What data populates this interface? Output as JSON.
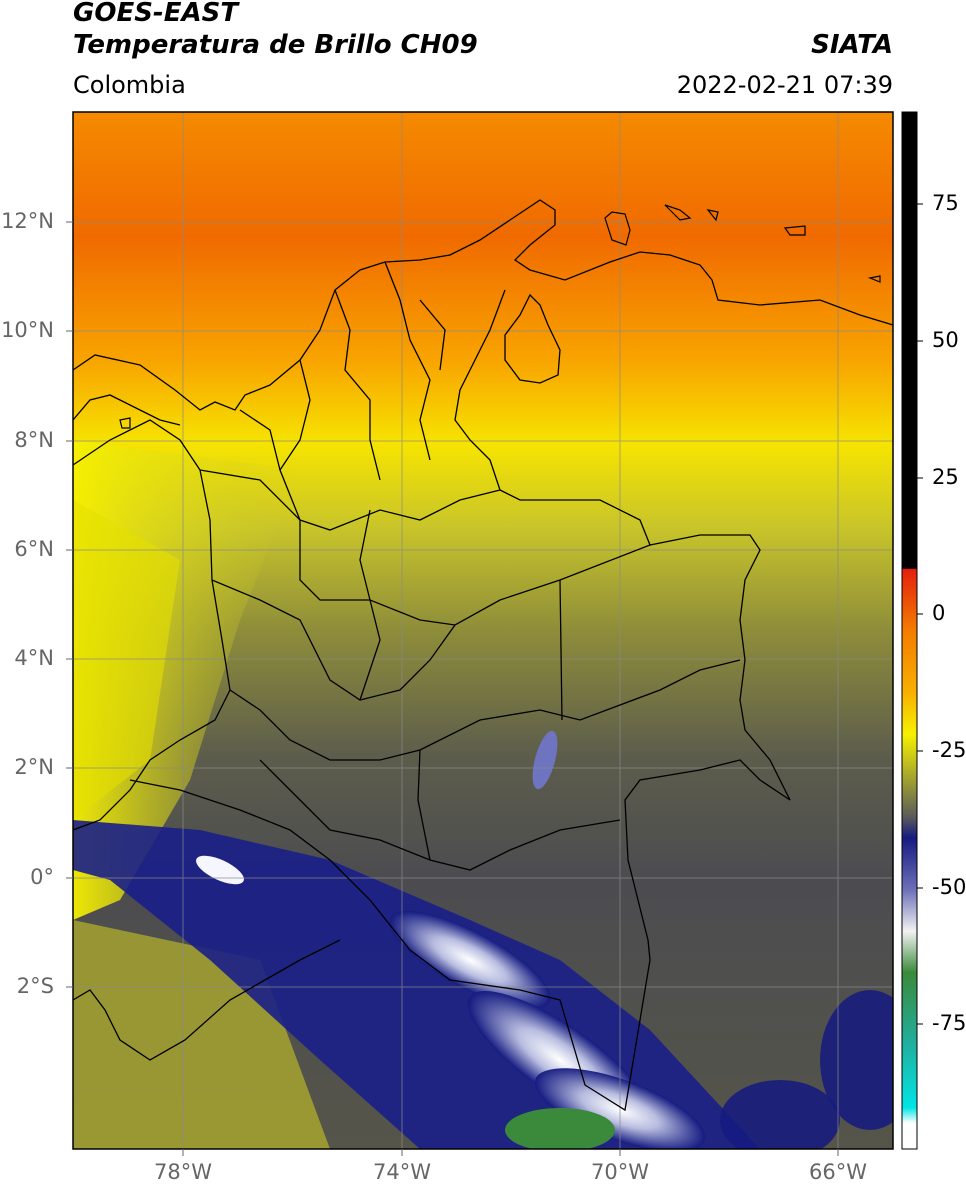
{
  "header": {
    "satellite": "GOES-EAST",
    "product": "Temperatura de Brillo CH09",
    "region": "Colombia",
    "org": "SIATA",
    "datetime": "2022-02-21 07:39"
  },
  "map": {
    "lat_labels": [
      "12°N",
      "10°N",
      "8°N",
      "6°N",
      "4°N",
      "2°N",
      "0°",
      "2°S"
    ],
    "lon_labels": [
      "78°W",
      "74°W",
      "70°W",
      "66°W"
    ],
    "grid": true
  },
  "colorbar": {
    "ticks": [
      "75",
      "50",
      "25",
      "0",
      "-25",
      "-50",
      "-75"
    ],
    "colors": {
      "black": "#000000",
      "red": "#e4200e",
      "orange": "#f47c00",
      "yellow": "#f6f100",
      "olive": "#a8a82c",
      "gray": "#5a5a5a",
      "navy": "#161a80",
      "white": "#f2f2f2",
      "green": "#3b8a3b",
      "teal": "#20b0a0",
      "cyan": "#00e5e5"
    }
  }
}
